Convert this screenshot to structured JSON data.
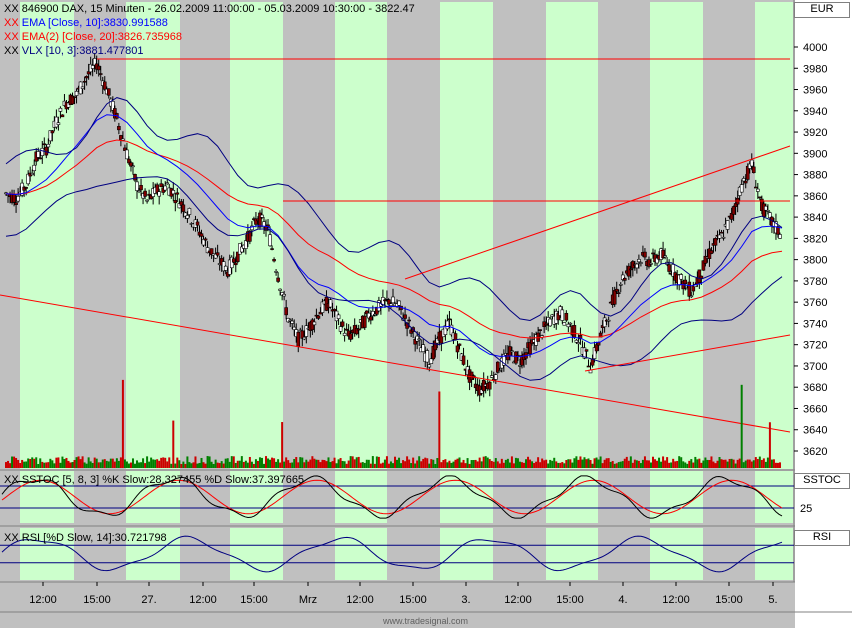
{
  "header": {
    "symbol_line": "846900  DAX, 15 Minuten - 26.02.2009 11:00:00 - 05.03.2009 10:30:00 - 3822.47",
    "ind_ema10": "EMA [Close, 10]:3830.991588",
    "ind_ema20": "EMA(2) [Close, 20]:3826.735968",
    "ind_vlx": "VLX [10, 3]:3881.477801",
    "ind_sstoc": "SSTOC [5, 8, 3] %K Slow:28.327455 %D Slow:37.397665",
    "ind_rsi": "RSI [%D Slow, 14]:30.721798",
    "xx": "XX"
  },
  "panels": {
    "price_unit": "EUR",
    "sstoc_label": "SSTOC",
    "rsi_label": "RSI",
    "sstoc_tick": "25"
  },
  "watermark": "www.tradesignal.com",
  "colors": {
    "background": "#c0c0c0",
    "session": "#ccffcc",
    "candle_up": "#ffffff",
    "candle_down": "#800000",
    "ema10": "#0000ff",
    "ema20": "#ff0000",
    "vlx": "#000080",
    "volume": "#008000",
    "volume_red": "#cc0000",
    "trendline": "#ff0000"
  },
  "chart_data": {
    "type": "candlestick",
    "y_axis": {
      "min": 3600,
      "max": 4010,
      "ticks": [
        3620,
        3640,
        3660,
        3680,
        3700,
        3720,
        3740,
        3760,
        3780,
        3800,
        3820,
        3840,
        3860,
        3880,
        3900,
        3920,
        3940,
        3960,
        3980,
        4000
      ]
    },
    "x_ticks": [
      "12:00",
      "15:00",
      "27.",
      "12:00",
      "15:00",
      "Mrz",
      "12:00",
      "15:00",
      "3.",
      "12:00",
      "15:00",
      "4.",
      "12:00",
      "15:00",
      "5."
    ],
    "ohlc_close_path": [
      3862,
      3858,
      3870,
      3895,
      3905,
      3930,
      3948,
      3955,
      3972,
      3985,
      3960,
      3932,
      3900,
      3870,
      3855,
      3865,
      3870,
      3858,
      3845,
      3830,
      3812,
      3800,
      3790,
      3805,
      3820,
      3840,
      3828,
      3785,
      3745,
      3725,
      3735,
      3750,
      3760,
      3742,
      3728,
      3735,
      3748,
      3755,
      3762,
      3755,
      3738,
      3720,
      3705,
      3725,
      3740,
      3715,
      3690,
      3678,
      3685,
      3700,
      3712,
      3705,
      3718,
      3730,
      3742,
      3750,
      3738,
      3722,
      3700,
      3728,
      3755,
      3780,
      3792,
      3802,
      3798,
      3805,
      3792,
      3780,
      3770,
      3788,
      3810,
      3822,
      3840,
      3870,
      3890,
      3850,
      3835,
      3822
    ],
    "trendlines": [
      {
        "from": [
          "26.02 11:00",
          3765
        ],
        "to": [
          "05.03 10:30",
          3630
        ]
      },
      {
        "from": [
          "02.03 16:00",
          3778
        ],
        "to": [
          "05.03 10:30",
          3905
        ]
      },
      {
        "from": [
          "04.03 10:00",
          3690
        ],
        "to": [
          "05.03 10:30",
          3726
        ]
      },
      {
        "from": [
          "26.02 13:00",
          3990
        ],
        "to": [
          "05.03 10:30",
          3990
        ]
      },
      {
        "from": [
          "27.02 15:00",
          3853
        ],
        "to": [
          "05.03 10:30",
          3853
        ]
      }
    ],
    "ema10_last": 3830.991588,
    "ema20_last": 3826.735968,
    "vlx_last": 3881.477801,
    "sstoc": {
      "k_slow_last": 28.327455,
      "d_slow_last": 37.397665,
      "levels": [
        25,
        75
      ]
    },
    "rsi": {
      "last": 30.721798
    }
  }
}
